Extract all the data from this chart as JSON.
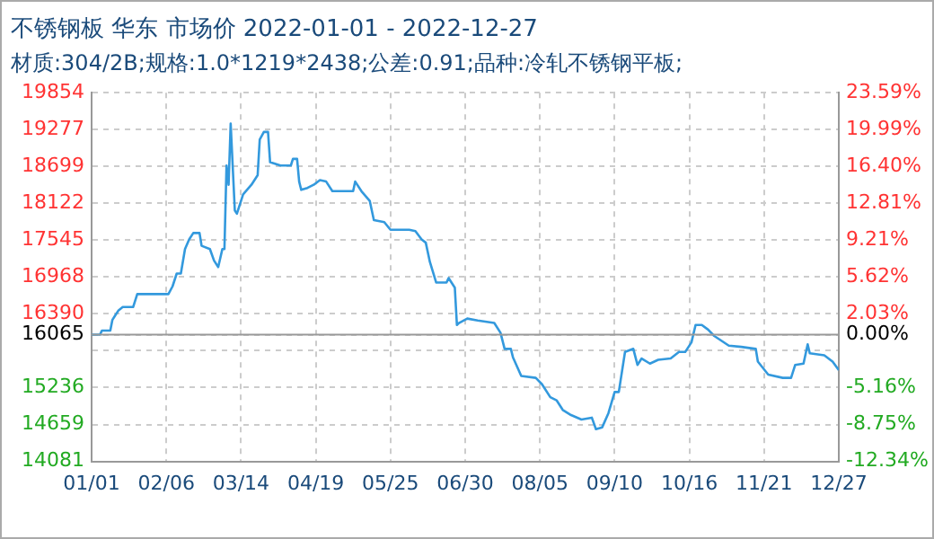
{
  "chart_data": {
    "type": "line",
    "title": "不锈钢板 华东 市场价 2022-01-01 - 2022-12-27",
    "subtitle": "材质:304/2B;规格:1.0*1219*2438;公差:0.91;品种:冷轧不锈钢平板;",
    "x": [
      "--01-01",
      "--01-05",
      "--01-06",
      "--01-10",
      "--01-11",
      "--01-12",
      "--01-14",
      "--01-16",
      "--01-21",
      "--01-23",
      "--02-07",
      "--02-09",
      "--02-11",
      "--02-13",
      "--02-15",
      "--02-17",
      "--02-19",
      "--02-22",
      "--02-23",
      "--02-27",
      "--03-01",
      "--03-03",
      "--03-05",
      "--03-06",
      "--03-07",
      "--03-08",
      "--03-09",
      "--03-11",
      "--03-12",
      "--03-15",
      "--03-19",
      "--03-22",
      "--03-23",
      "--03-25",
      "--03-27",
      "--03-28",
      "--04-02",
      "--04-07",
      "--04-08",
      "--04-10",
      "--04-11",
      "--04-12",
      "--04-15",
      "--04-18",
      "--04-21",
      "--04-24",
      "--04-27",
      "--05-07",
      "--05-08",
      "--05-11",
      "--05-15",
      "--05-17",
      "--05-22",
      "--05-25",
      "--06-03",
      "--06-06",
      "--06-09",
      "--06-11",
      "--06-13",
      "--06-16",
      "--06-21",
      "--06-22",
      "--06-25",
      "--06-26",
      "--06-27",
      "--07-01",
      "--07-06",
      "--07-14",
      "--07-17",
      "--07-19",
      "--07-22",
      "--07-23",
      "--07-27",
      "--08-03",
      "--08-06",
      "--08-10",
      "--08-13",
      "--08-16",
      "--08-20",
      "--08-25",
      "--08-30",
      "--09-01",
      "--09-04",
      "--09-07",
      "--09-10",
      "--09-12",
      "--09-15",
      "--09-19",
      "--09-21",
      "--09-23",
      "--09-27",
      "--10-01",
      "--10-07",
      "--10-11",
      "--10-14",
      "--10-17",
      "--10-19",
      "--10-22",
      "--10-25",
      "--10-28",
      "--11-04",
      "--11-10",
      "--11-17",
      "--11-18",
      "--11-23",
      "--11-30",
      "--12-04",
      "--12-06",
      "--12-10",
      "--12-12",
      "--12-13",
      "--12-20",
      "--12-24",
      "--12-27"
    ],
    "series": [
      {
        "color": "#3399dd",
        "values": [
          16065,
          16065,
          16130,
          16130,
          16296,
          16347,
          16447,
          16498,
          16498,
          16701,
          16701,
          16822,
          17022,
          17022,
          17405,
          17557,
          17657,
          17657,
          17457,
          17405,
          17224,
          17124,
          17405,
          17405,
          18714,
          18412,
          19370,
          18010,
          17959,
          18261,
          18412,
          18563,
          19119,
          19240,
          19240,
          18766,
          18714,
          18714,
          18817,
          18817,
          18463,
          18333,
          18363,
          18412,
          18485,
          18463,
          18312,
          18312,
          18463,
          18312,
          18161,
          17859,
          17828,
          17708,
          17708,
          17687,
          17557,
          17506,
          17203,
          16882,
          16882,
          16952,
          16801,
          16218,
          16248,
          16317,
          16288,
          16248,
          16096,
          15843,
          15843,
          15712,
          15419,
          15389,
          15289,
          15087,
          15038,
          14887,
          14806,
          14736,
          14766,
          14585,
          14615,
          14836,
          15168,
          15168,
          15794,
          15843,
          15592,
          15692,
          15612,
          15672,
          15692,
          15794,
          15794,
          15945,
          16218,
          16218,
          16145,
          16045,
          15894,
          15874,
          15843,
          15643,
          15440,
          15389,
          15389,
          15592,
          15612,
          15915,
          15773,
          15743,
          15643,
          15510
        ]
      }
    ],
    "xlim": [
      "--01-01",
      "--12-27"
    ],
    "xticks": [
      {
        "value": "--01-01",
        "label": "01/01"
      },
      {
        "value": "--02-06",
        "label": "02/06"
      },
      {
        "value": "--03-14",
        "label": "03/14"
      },
      {
        "value": "--04-19",
        "label": "04/19"
      },
      {
        "value": "--05-25",
        "label": "05/25"
      },
      {
        "value": "--06-30",
        "label": "06/30"
      },
      {
        "value": "--08-05",
        "label": "08/05"
      },
      {
        "value": "--09-10",
        "label": "09/10"
      },
      {
        "value": "--10-16",
        "label": "10/16"
      },
      {
        "value": "--11-21",
        "label": "11/21"
      },
      {
        "value": "--12-27",
        "label": "12/27"
      }
    ],
    "ylim": [
      14081,
      19854
    ],
    "yticks": [
      14081,
      14659,
      15236,
      {
        "value": 15813,
        "label": null
      },
      16065,
      16390,
      16968,
      17545,
      18122,
      18699,
      19277,
      19854
    ],
    "y2lim": [
      -12.34,
      23.59
    ],
    "y2ticks": [
      {
        "value": -12.34,
        "label": "-12.34%"
      },
      {
        "value": -8.75,
        "label": "-8.75%"
      },
      {
        "value": -5.16,
        "label": "-5.16%"
      },
      {
        "value": 0,
        "label": "0.00%"
      },
      {
        "value": 2.03,
        "label": "2.03%"
      },
      {
        "value": 5.62,
        "label": "5.62%"
      },
      {
        "value": 9.21,
        "label": "9.21%"
      },
      {
        "value": 12.81,
        "label": "12.81%"
      },
      {
        "value": 16.4,
        "label": "16.40%"
      },
      {
        "value": 19.99,
        "label": "19.99%"
      },
      {
        "value": 23.59,
        "label": "23.59%"
      }
    ],
    "ref_lines": [
      {
        "axis": "y",
        "value": 16065,
        "color": "#999999"
      }
    ],
    "grid": true,
    "legend": false,
    "marker": "none",
    "line_style": "solid"
  }
}
